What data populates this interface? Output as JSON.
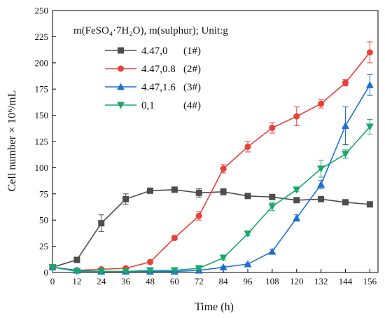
{
  "chart_data": {
    "type": "line",
    "title": "",
    "xlabel": "Time (h)",
    "ylabel": "Cell number × 10⁶/mL",
    "xlim": [
      0,
      160
    ],
    "ylim": [
      0,
      250
    ],
    "x_ticks": [
      0,
      12,
      24,
      36,
      48,
      60,
      72,
      84,
      96,
      108,
      120,
      132,
      144,
      156
    ],
    "y_ticks": [
      0,
      25,
      50,
      75,
      100,
      125,
      150,
      175,
      200,
      225,
      250
    ],
    "grid": false,
    "legend_position": "top-left",
    "legend_title": "m(FeSO₄·7H₂O), m(sulphur); Unit:g",
    "x": [
      0,
      12,
      24,
      36,
      48,
      60,
      72,
      84,
      96,
      108,
      120,
      132,
      144,
      156
    ],
    "series": [
      {
        "name": "4.47,0",
        "tag": "(1#)",
        "color": "#4d4d4d",
        "marker": "square",
        "values": [
          5,
          12,
          47,
          70,
          78,
          79,
          76,
          77,
          73,
          72,
          69,
          70,
          67,
          65
        ],
        "errors": [
          0,
          1,
          8,
          5,
          2,
          2,
          4,
          3,
          1,
          2,
          1,
          1,
          1,
          1
        ]
      },
      {
        "name": "4.47,0.8",
        "tag": "(2#)",
        "color": "#e8403a",
        "marker": "circle",
        "values": [
          5,
          2,
          3,
          4,
          10,
          33,
          54,
          99,
          120,
          138,
          149,
          161,
          181,
          210
        ],
        "errors": [
          0,
          0,
          0,
          0,
          1,
          2,
          4,
          4,
          5,
          5,
          9,
          4,
          3,
          10
        ]
      },
      {
        "name": "4.47,1.6",
        "tag": "(3#)",
        "color": "#1f6fd1",
        "marker": "triangle-up",
        "values": [
          5,
          2,
          1,
          1,
          1,
          1,
          2,
          5,
          8,
          20,
          52,
          84,
          140,
          179
        ],
        "errors": [
          0,
          0,
          0,
          0,
          0,
          0,
          0,
          1,
          1,
          2,
          3,
          4,
          18,
          10
        ]
      },
      {
        "name": "0,1",
        "tag": "(4#)",
        "color": "#1aa86a",
        "marker": "triangle-down",
        "values": [
          5,
          1,
          1,
          1,
          2,
          2,
          4,
          14,
          37,
          63,
          79,
          99,
          113,
          139
        ],
        "errors": [
          0,
          0,
          0,
          0,
          0,
          0,
          1,
          2,
          2,
          4,
          2,
          8,
          4,
          7
        ]
      }
    ]
  }
}
